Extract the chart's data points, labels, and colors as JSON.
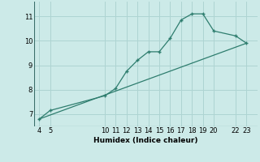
{
  "xlabel": "Humidex (Indice chaleur)",
  "bg_color": "#cceae8",
  "grid_color": "#aed4d2",
  "line_color": "#2e7d6e",
  "curve_x": [
    4,
    5,
    10,
    11,
    12,
    13,
    14,
    15,
    16,
    17,
    18,
    19,
    20,
    22,
    23
  ],
  "curve_y": [
    6.8,
    7.15,
    7.75,
    8.05,
    8.75,
    9.2,
    9.55,
    9.55,
    10.1,
    10.85,
    11.1,
    11.1,
    10.4,
    10.2,
    9.9
  ],
  "line_x": [
    4,
    23
  ],
  "line_y": [
    6.8,
    9.9
  ],
  "yticks": [
    7,
    8,
    9,
    10,
    11
  ],
  "xticks": [
    4,
    5,
    10,
    11,
    12,
    13,
    14,
    15,
    16,
    17,
    18,
    19,
    20,
    22,
    23
  ],
  "xlim": [
    3.5,
    24.0
  ],
  "ylim": [
    6.5,
    11.6
  ],
  "marker": "+"
}
